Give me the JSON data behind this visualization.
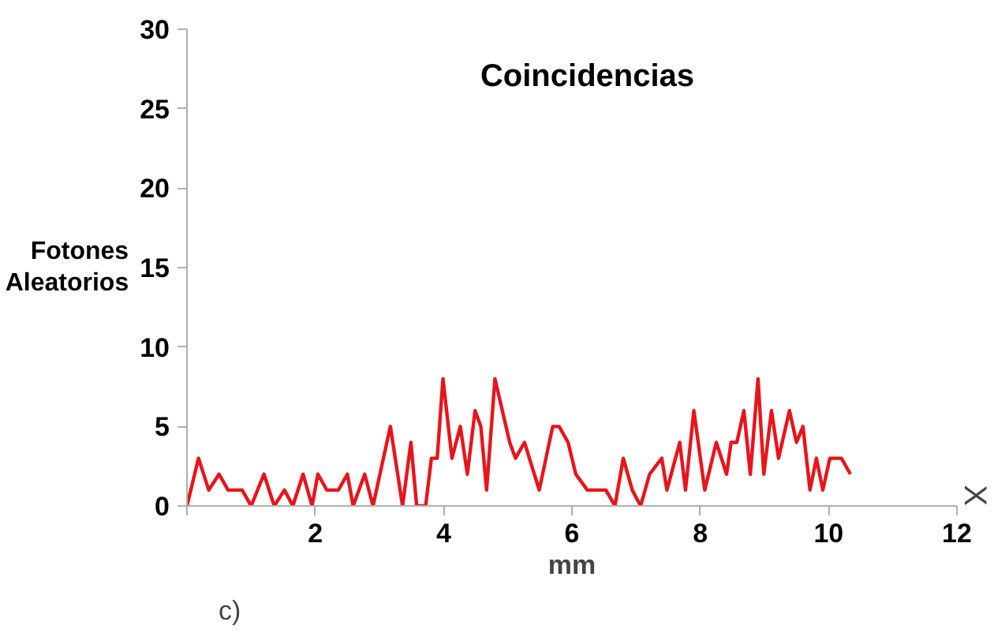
{
  "chart_data": {
    "type": "line",
    "title": "Coincidencias",
    "xlabel": "mm",
    "ylabel": "Fotones Aleatorios",
    "annotations": [
      "X",
      "c)"
    ],
    "xlim": [
      0,
      12
    ],
    "ylim": [
      0,
      30
    ],
    "xticks": [
      {
        "value": 0,
        "label": null
      },
      2,
      4,
      6,
      8,
      10,
      12
    ],
    "yticks": [
      0,
      5,
      10,
      15,
      20,
      25,
      30
    ],
    "grid": false,
    "marker": "none",
    "line_style": "solid",
    "x": [
      0,
      0.18,
      0.34,
      0.5,
      0.64,
      0.86,
      1.0,
      1.2,
      1.36,
      1.52,
      1.65,
      1.81,
      1.95,
      2.04,
      2.18,
      2.36,
      2.5,
      2.59,
      2.77,
      2.9,
      3.17,
      3.36,
      3.49,
      3.58,
      3.72,
      3.81,
      3.9,
      3.99,
      4.13,
      4.26,
      4.37,
      4.49,
      4.58,
      4.67,
      4.8,
      5.03,
      5.12,
      5.26,
      5.49,
      5.7,
      5.8,
      5.94,
      6.06,
      6.24,
      6.53,
      6.67,
      6.8,
      6.94,
      7.07,
      7.21,
      7.4,
      7.48,
      7.68,
      7.77,
      7.9,
      8.07,
      8.25,
      8.41,
      8.48,
      8.57,
      8.68,
      8.78,
      8.9,
      8.99,
      9.11,
      9.22,
      9.39,
      9.5,
      9.6,
      9.71,
      9.81,
      9.91,
      10.02,
      10.2,
      10.34
    ],
    "series": [
      {
        "color": "#e8141c",
        "values": [
          0,
          3,
          1,
          2,
          1,
          1,
          0,
          2,
          0,
          1,
          0,
          2,
          0,
          2,
          1,
          1,
          2,
          0,
          2,
          0,
          5,
          0,
          4,
          0,
          0,
          3,
          3,
          8,
          3,
          5,
          2,
          6,
          5,
          1,
          8,
          4,
          3,
          4,
          1,
          5,
          5,
          4,
          2,
          1,
          1,
          0,
          3,
          1,
          0,
          2,
          3,
          1,
          4,
          1,
          6,
          1,
          4,
          2,
          4,
          4,
          6,
          2,
          8,
          2,
          6,
          3,
          6,
          4,
          5,
          1,
          3,
          1,
          3,
          3,
          2
        ]
      }
    ]
  }
}
